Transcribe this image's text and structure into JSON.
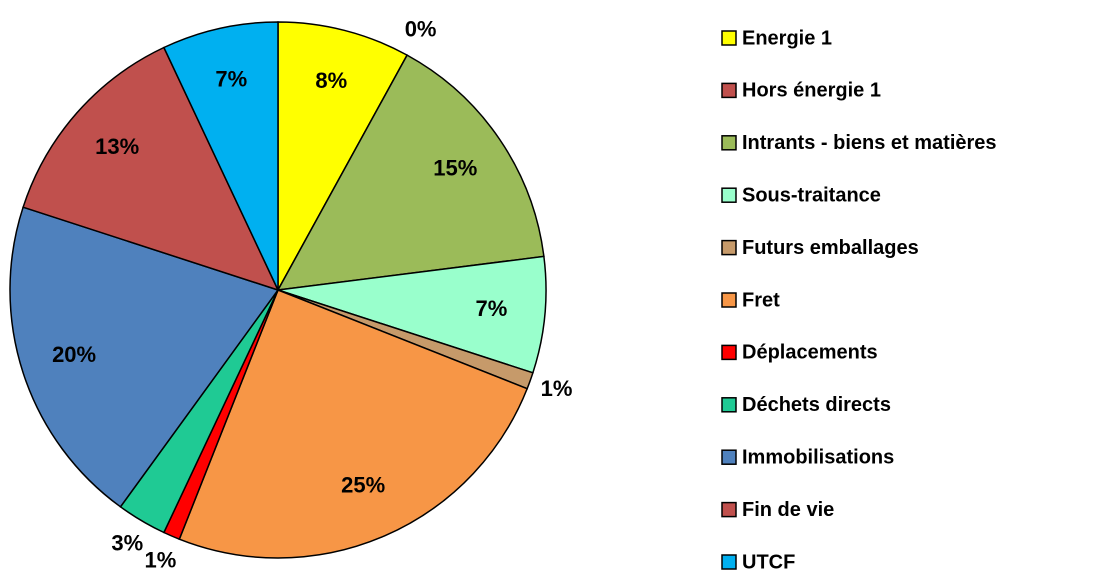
{
  "chart_data": {
    "type": "pie",
    "categories": [
      "Energie 1",
      "Hors énergie 1",
      "Intrants - biens et matières",
      "Sous-traitance",
      "Futurs emballages",
      "Fret",
      "Déplacements",
      "Déchets directs",
      "Immobilisations",
      "Fin de vie",
      "UTCF"
    ],
    "values": [
      8,
      0,
      15,
      7,
      1,
      25,
      1,
      3,
      20,
      13,
      7
    ],
    "value_labels": [
      "8%",
      "0%",
      "15%",
      "7%",
      "1%",
      "25%",
      "1%",
      "3%",
      "20%",
      "13%",
      "7%"
    ],
    "colors": [
      "#ffff00",
      "#c0504d",
      "#9bbb59",
      "#99ffcc",
      "#c69a6a",
      "#f79646",
      "#ff0000",
      "#1fca94",
      "#4f81bd",
      "#c0504d",
      "#00b0f0"
    ],
    "legend": "right"
  }
}
